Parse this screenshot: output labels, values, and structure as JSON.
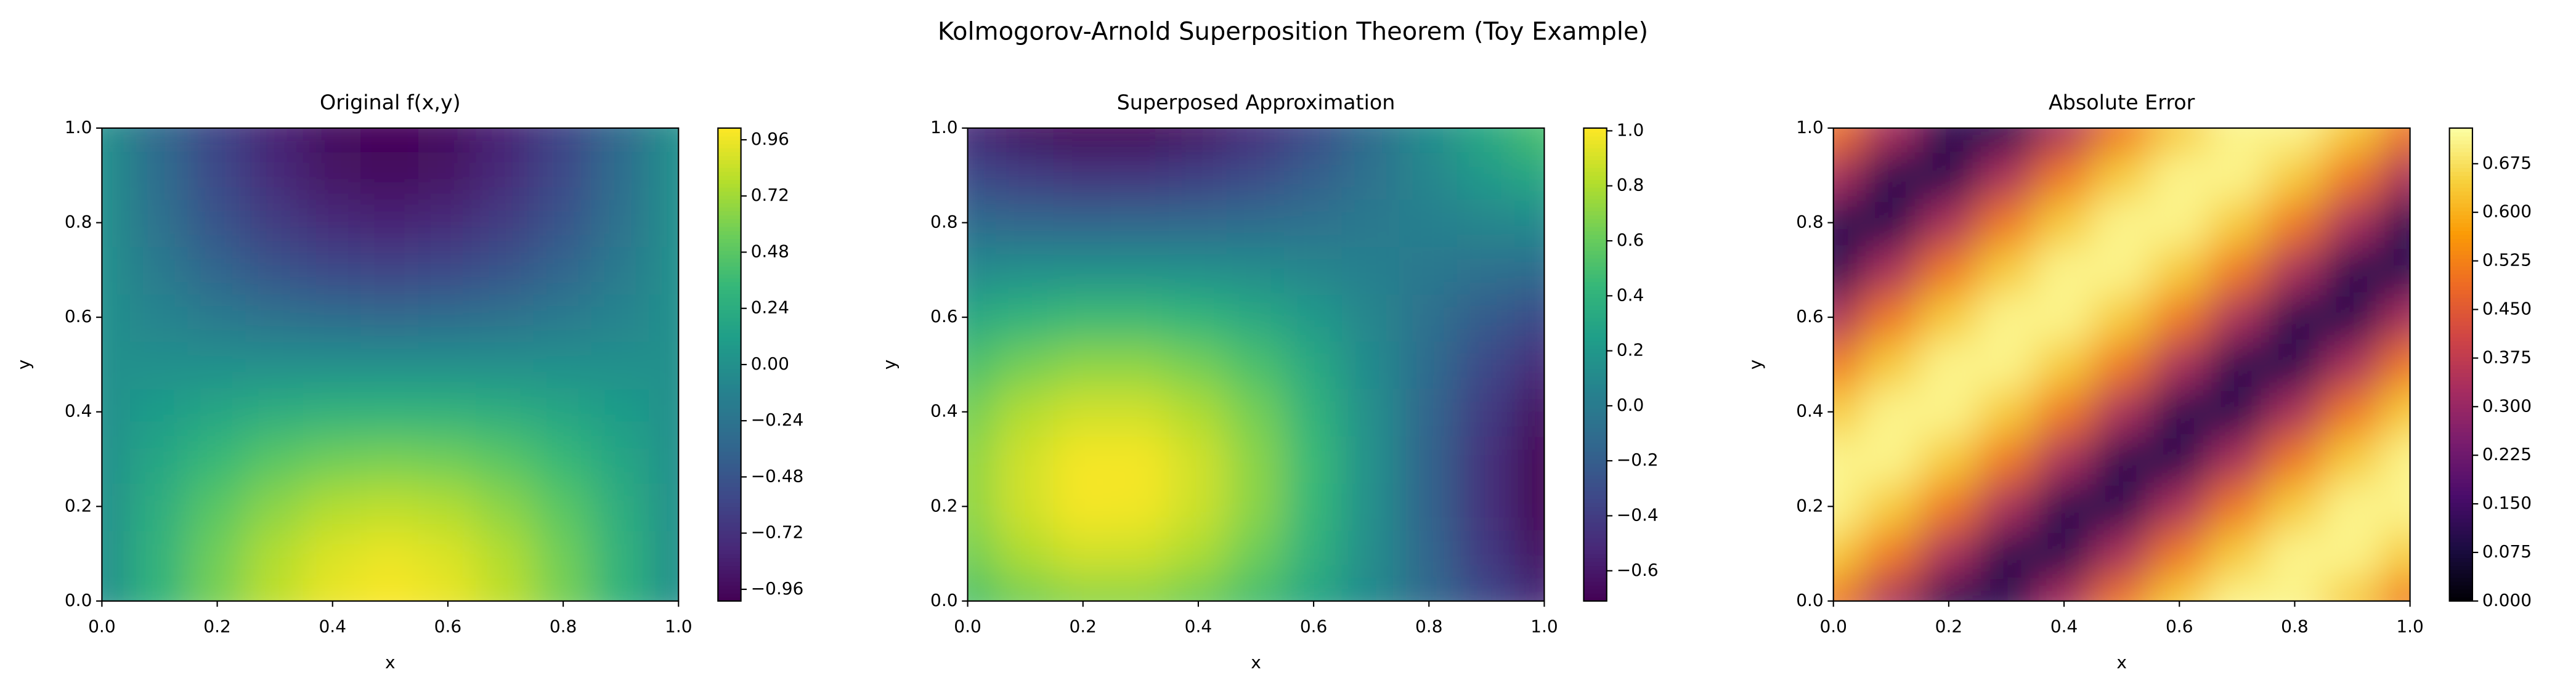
{
  "title": "Kolmogorov-Arnold Superposition Theorem (Toy Example)",
  "chart_data": [
    {
      "type": "heatmap",
      "title": "Original f(x,y)",
      "xlabel": "x",
      "ylabel": "y",
      "colormap": "viridis",
      "x": [
        0,
        0.1,
        0.2,
        0.3,
        0.4,
        0.5,
        0.6,
        0.7,
        0.8,
        0.9,
        1
      ],
      "y": [
        0,
        0.1,
        0.2,
        0.3,
        0.4,
        0.5,
        0.6,
        0.7,
        0.8,
        0.9,
        1
      ],
      "z": [
        [
          0,
          0.31,
          0.59,
          0.81,
          0.95,
          1,
          0.95,
          0.81,
          0.59,
          0.31,
          0
        ],
        [
          0,
          0.29,
          0.56,
          0.77,
          0.9,
          0.95,
          0.9,
          0.77,
          0.56,
          0.29,
          0
        ],
        [
          0,
          0.25,
          0.48,
          0.65,
          0.77,
          0.81,
          0.77,
          0.65,
          0.48,
          0.25,
          0
        ],
        [
          0,
          0.18,
          0.35,
          0.48,
          0.56,
          0.59,
          0.56,
          0.48,
          0.35,
          0.18,
          0
        ],
        [
          0,
          0.1,
          0.18,
          0.25,
          0.29,
          0.31,
          0.29,
          0.25,
          0.18,
          0.1,
          0
        ],
        [
          0,
          0,
          0,
          0,
          0,
          0,
          0,
          0,
          0,
          0,
          0
        ],
        [
          0,
          -0.1,
          -0.18,
          -0.25,
          -0.29,
          -0.31,
          -0.29,
          -0.25,
          -0.18,
          -0.1,
          0
        ],
        [
          0,
          -0.18,
          -0.35,
          -0.48,
          -0.56,
          -0.59,
          -0.56,
          -0.48,
          -0.35,
          -0.18,
          0
        ],
        [
          0,
          -0.25,
          -0.48,
          -0.65,
          -0.77,
          -0.81,
          -0.77,
          -0.65,
          -0.48,
          -0.25,
          0
        ],
        [
          0,
          -0.29,
          -0.56,
          -0.77,
          -0.9,
          -0.95,
          -0.9,
          -0.77,
          -0.56,
          -0.29,
          0
        ],
        [
          0,
          -0.31,
          -0.59,
          -0.81,
          -0.95,
          -1,
          -0.95,
          -0.81,
          -0.59,
          -0.31,
          0
        ]
      ],
      "xlim": [
        0,
        1
      ],
      "ylim": [
        0,
        1
      ],
      "xticks": [
        {
          "value": 0,
          "label": "0.0"
        },
        0.2,
        0.4,
        0.6,
        0.8,
        {
          "value": 1,
          "label": "1.0"
        }
      ],
      "yticks": [
        {
          "value": 0,
          "label": "0.0"
        },
        0.2,
        0.4,
        0.6,
        0.8,
        {
          "value": 1,
          "label": "1.0"
        }
      ],
      "clim": [
        -1.01,
        1.01
      ],
      "cticks": [
        {
          "value": -0.96,
          "label": "−0.96"
        },
        {
          "value": -0.72,
          "label": "−0.72"
        },
        {
          "value": -0.48,
          "label": "−0.48"
        },
        {
          "value": -0.24,
          "label": "−0.24"
        },
        {
          "value": 0,
          "label": "0.00"
        },
        0.24,
        0.48,
        0.72,
        0.96
      ]
    },
    {
      "type": "heatmap",
      "title": "Superposed Approximation",
      "xlabel": "x",
      "ylabel": "y",
      "colormap": "viridis",
      "x": [
        0,
        0.1,
        0.2,
        0.3,
        0.4,
        0.5,
        0.6,
        0.7,
        0.8,
        0.9,
        1
      ],
      "y": [
        0,
        0.1,
        0.2,
        0.3,
        0.4,
        0.5,
        0.6,
        0.7,
        0.8,
        0.9,
        1
      ],
      "z": [
        [
          0.51,
          0.64,
          0.7,
          0.7,
          0.62,
          0.49,
          0.31,
          0.1,
          -0.12,
          -0.33,
          -0.51
        ],
        [
          0.64,
          0.8,
          0.89,
          0.88,
          0.79,
          0.62,
          0.39,
          0.13,
          -0.15,
          -0.42,
          -0.64
        ],
        [
          0.71,
          0.89,
          0.99,
          0.98,
          0.88,
          0.7,
          0.44,
          0.14,
          -0.16,
          -0.46,
          -0.71
        ],
        [
          0.71,
          0.89,
          0.99,
          0.99,
          0.89,
          0.7,
          0.45,
          0.15,
          -0.16,
          -0.46,
          -0.71
        ],
        [
          0.64,
          0.81,
          0.89,
          0.89,
          0.8,
          0.64,
          0.4,
          0.14,
          -0.15,
          -0.41,
          -0.64
        ],
        [
          0.51,
          0.64,
          0.71,
          0.71,
          0.64,
          0.51,
          0.33,
          0.11,
          -0.11,
          -0.33,
          -0.51
        ],
        [
          0.33,
          0.41,
          0.46,
          0.46,
          0.42,
          0.33,
          0.22,
          0.08,
          -0.07,
          -0.21,
          -0.33
        ],
        [
          0.11,
          0.15,
          0.16,
          0.16,
          0.15,
          0.12,
          0.08,
          0.03,
          -0.02,
          -0.07,
          -0.11
        ],
        [
          -0.11,
          -0.14,
          -0.15,
          -0.14,
          -0.13,
          -0.1,
          -0.06,
          -0.01,
          0.03,
          0.08,
          0.11
        ],
        [
          -0.33,
          -0.4,
          -0.45,
          -0.44,
          -0.39,
          -0.31,
          -0.19,
          -0.06,
          0.08,
          0.22,
          0.33
        ],
        [
          -0.51,
          -0.64,
          -0.7,
          -0.7,
          -0.62,
          -0.49,
          -0.31,
          -0.1,
          0.12,
          0.33,
          0.51
        ]
      ],
      "xlim": [
        0,
        1
      ],
      "ylim": [
        0,
        1
      ],
      "xticks": [
        {
          "value": 0,
          "label": "0.0"
        },
        0.2,
        0.4,
        0.6,
        0.8,
        {
          "value": 1,
          "label": "1.0"
        }
      ],
      "yticks": [
        {
          "value": 0,
          "label": "0.0"
        },
        0.2,
        0.4,
        0.6,
        0.8,
        {
          "value": 1,
          "label": "1.0"
        }
      ],
      "clim": [
        -0.71,
        1.01
      ],
      "cticks": [
        {
          "value": -0.6,
          "label": "−0.6"
        },
        {
          "value": -0.4,
          "label": "−0.4"
        },
        {
          "value": -0.2,
          "label": "−0.2"
        },
        {
          "value": 0,
          "label": "0.0"
        },
        0.2,
        0.4,
        0.6,
        0.8,
        {
          "value": 1,
          "label": "1.0"
        }
      ]
    },
    {
      "type": "heatmap",
      "title": "Absolute Error",
      "xlabel": "x",
      "ylabel": "y",
      "colormap": "inferno",
      "x": [
        0,
        0.1,
        0.2,
        0.3,
        0.4,
        0.5,
        0.6,
        0.7,
        0.8,
        0.9,
        1
      ],
      "y": [
        0,
        0.1,
        0.2,
        0.3,
        0.4,
        0.5,
        0.6,
        0.7,
        0.8,
        0.9,
        1
      ],
      "z": [
        [
          0.51,
          0.33,
          0.11,
          0.11,
          0.33,
          0.51,
          0.64,
          0.71,
          0.71,
          0.64,
          0.51
        ],
        [
          0.64,
          0.51,
          0.33,
          0.11,
          0.11,
          0.33,
          0.51,
          0.64,
          0.71,
          0.71,
          0.64
        ],
        [
          0.71,
          0.64,
          0.51,
          0.33,
          0.11,
          0.11,
          0.33,
          0.51,
          0.64,
          0.71,
          0.71
        ],
        [
          0.71,
          0.71,
          0.64,
          0.51,
          0.33,
          0.11,
          0.11,
          0.33,
          0.51,
          0.64,
          0.71
        ],
        [
          0.64,
          0.71,
          0.71,
          0.64,
          0.51,
          0.33,
          0.11,
          0.11,
          0.33,
          0.51,
          0.64
        ],
        [
          0.51,
          0.64,
          0.71,
          0.71,
          0.64,
          0.51,
          0.33,
          0.11,
          0.11,
          0.33,
          0.51
        ],
        [
          0.33,
          0.51,
          0.64,
          0.71,
          0.71,
          0.64,
          0.51,
          0.33,
          0.11,
          0.11,
          0.33
        ],
        [
          0.11,
          0.33,
          0.51,
          0.64,
          0.71,
          0.71,
          0.64,
          0.51,
          0.33,
          0.11,
          0.11
        ],
        [
          0.11,
          0.11,
          0.33,
          0.51,
          0.64,
          0.71,
          0.71,
          0.64,
          0.51,
          0.33,
          0.11
        ],
        [
          0.33,
          0.11,
          0.11,
          0.33,
          0.51,
          0.64,
          0.71,
          0.71,
          0.64,
          0.51,
          0.33
        ],
        [
          0.51,
          0.33,
          0.11,
          0.11,
          0.33,
          0.51,
          0.64,
          0.71,
          0.71,
          0.64,
          0.51
        ]
      ],
      "xlim": [
        0,
        1
      ],
      "ylim": [
        0,
        1
      ],
      "xticks": [
        {
          "value": 0,
          "label": "0.0"
        },
        0.2,
        0.4,
        0.6,
        0.8,
        {
          "value": 1,
          "label": "1.0"
        }
      ],
      "yticks": [
        {
          "value": 0,
          "label": "0.0"
        },
        0.2,
        0.4,
        0.6,
        0.8,
        {
          "value": 1,
          "label": "1.0"
        }
      ],
      "clim": [
        0,
        0.73
      ],
      "cticks": [
        {
          "value": 0,
          "label": "0.000"
        },
        0.075,
        {
          "value": 0.15,
          "label": "0.150"
        },
        0.225,
        {
          "value": 0.3,
          "label": "0.300"
        },
        0.375,
        {
          "value": 0.45,
          "label": "0.450"
        },
        0.525,
        {
          "value": 0.6,
          "label": "0.600"
        },
        0.675
      ]
    }
  ]
}
